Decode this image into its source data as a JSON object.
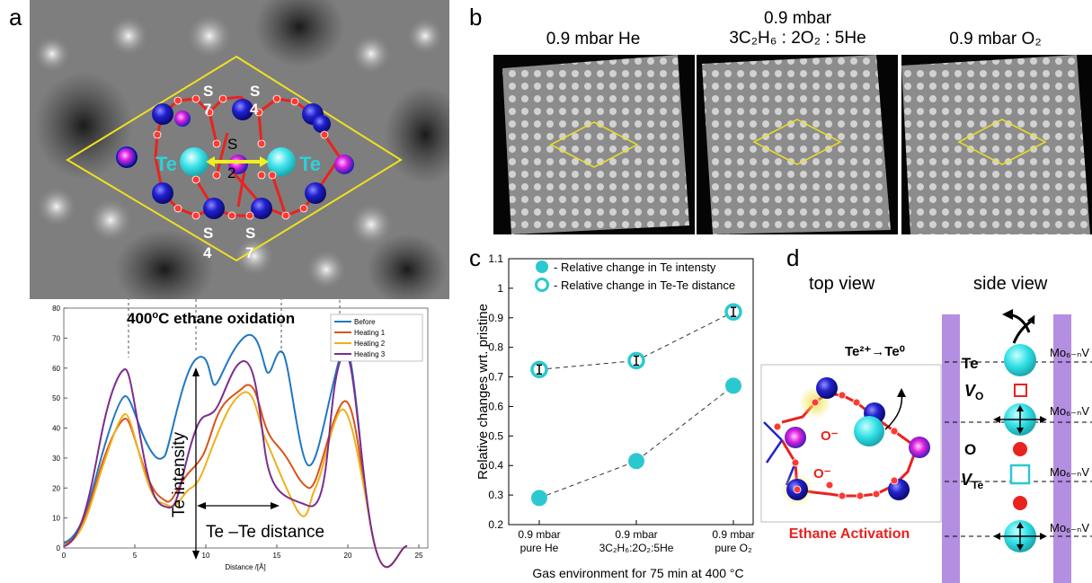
{
  "panel_labels": {
    "a": "a",
    "b": "b",
    "c": "c",
    "d": "d"
  },
  "panel_a": {
    "atom_labels": {
      "s7_top_s": "S",
      "s7_top_n": "7",
      "s4_top_s": "S",
      "s4_top_n": "4",
      "s2_s": "S",
      "s2_n": "2",
      "s4_bottom_s": "S",
      "s4_bottom_n": "4",
      "s7_bottom_s": "S",
      "s7_bottom_n": "7",
      "te_left": "Te",
      "te_right": "Te"
    },
    "profile": {
      "title_pre": "400",
      "title_sup": "o",
      "title_post": "C ethane oxidation",
      "xlabel": "Distance /[Å]",
      "y_annotation": "Te intensity",
      "x_annotation": "Te –Te distance",
      "y_ticks": [
        "0",
        "10",
        "20",
        "30",
        "40",
        "50",
        "60",
        "70",
        "80"
      ],
      "x_ticks": [
        "0",
        "5",
        "10",
        "15",
        "20",
        "25"
      ],
      "legend": [
        "Before",
        "Heating 1",
        "Heating 2",
        "Heating 3"
      ]
    }
  },
  "panel_b": {
    "titles": [
      {
        "line1": "",
        "main": "0.9 mbar He"
      },
      {
        "line1": "0.9 mbar",
        "main": "3C₂H₆ : 2O₂ : 5He"
      },
      {
        "line1": "",
        "main": "0.9 mbar O₂"
      }
    ]
  },
  "chart_data": {
    "type": "scatter",
    "title": "",
    "xlabel": "Gas environment for 75 min at 400 °C",
    "ylabel": "Relative changes wrt. pristine",
    "categories": [
      [
        "0.9 mbar",
        "pure He"
      ],
      [
        "0.9 mbar",
        "3C₂H₆:2O₂:5He"
      ],
      [
        "0.9 mbar",
        "pure O₂"
      ]
    ],
    "ylim": [
      0.2,
      1.1
    ],
    "yticks": [
      "0.2",
      "0.3",
      "0.4",
      "0.5",
      "0.6",
      "0.7",
      "0.8",
      "0.9",
      "1",
      "1.1"
    ],
    "series": [
      {
        "name": "Relative change in Te intensty",
        "values": [
          0.29,
          0.415,
          0.67
        ],
        "marker": "filled",
        "color": "#2bc9cf"
      },
      {
        "name": "Relative change in Te-Te distance",
        "values": [
          0.725,
          0.755,
          0.92
        ],
        "marker": "hollow",
        "color": "#2bc9cf"
      }
    ],
    "legend_position": "top-left",
    "grid": false
  },
  "panel_d": {
    "top_view": "top view",
    "side_view": "side view",
    "reaction": "Te²⁺→Te⁰",
    "o_minus_1": "O⁻",
    "o_minus_2": "O⁻",
    "caption": "Ethane Activation",
    "side_labels": {
      "te": "Te",
      "vo_main": "V",
      "vo_sub": "O",
      "o": "O",
      "vte_main": "V",
      "vte_sub": "Te"
    },
    "mo_labels": [
      "Mo₆₋ₙV",
      "Mo₆₋ₙV",
      "Mo₆₋ₙV",
      "Mo₆₋ₙV"
    ],
    "colors": {
      "accent": "#2bc9cf",
      "red": "#e8231f",
      "purple": "#b48ee0",
      "caption": "#e8231f"
    }
  }
}
